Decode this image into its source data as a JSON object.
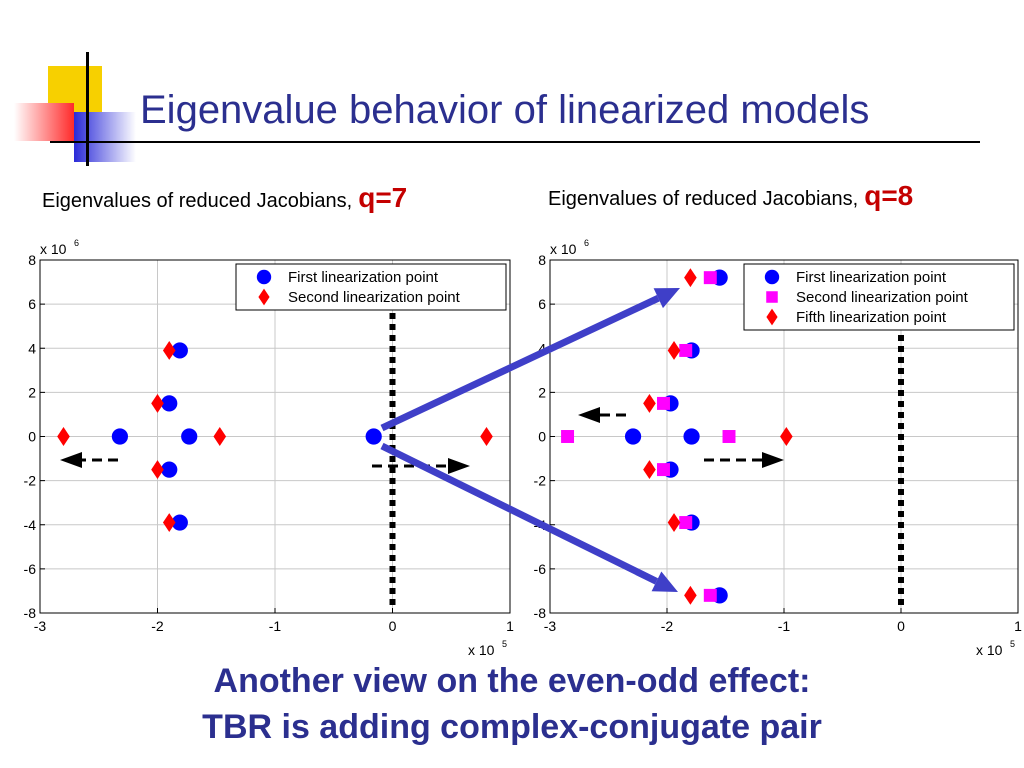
{
  "slide": {
    "title": "Eigenvalue behavior of linearized models",
    "bottom_line1": "Another view on the even-odd effect:",
    "bottom_line2": "TBR is adding complex-conjugate pair"
  },
  "colors": {
    "title": "#2b2f8f",
    "accent_red": "#c40000",
    "series_blue": "#0000ff",
    "series_red": "#ff0000",
    "series_magenta": "#ff00ff",
    "arrow": "#3f3fc8"
  },
  "chart_data": [
    {
      "type": "scatter",
      "subtitle": "Eigenvalues of reduced Jacobians,",
      "q_label": "q=7",
      "x_multiplier": "x 10",
      "x_multiplier_exp": "5",
      "y_multiplier": "x 10",
      "y_multiplier_exp": "6",
      "xlim": [
        -3,
        1
      ],
      "ylim": [
        -8,
        8
      ],
      "xticks": [
        "-3",
        "-2",
        "-1",
        "0",
        "1"
      ],
      "yticks": [
        "8",
        "6",
        "4",
        "2",
        "0",
        "-2",
        "-4",
        "-6",
        "-8"
      ],
      "grid": true,
      "legend_position": "top-right",
      "series": [
        {
          "name": "First linearization point",
          "marker": "circle",
          "color": "#0000ff",
          "points": [
            [
              -2.32,
              0
            ],
            [
              -1.73,
              0
            ],
            [
              -0.16,
              0
            ],
            [
              -1.81,
              3.9
            ],
            [
              -1.81,
              -3.9
            ],
            [
              -1.9,
              1.5
            ],
            [
              -1.9,
              -1.5
            ]
          ]
        },
        {
          "name": "Second linearization point",
          "marker": "diamond",
          "color": "#ff0000",
          "points": [
            [
              -2.8,
              0
            ],
            [
              -1.47,
              0
            ],
            [
              0.8,
              0
            ],
            [
              -1.9,
              3.9
            ],
            [
              -1.9,
              -3.9
            ],
            [
              -2.0,
              1.5
            ],
            [
              -2.0,
              -1.5
            ]
          ]
        }
      ]
    },
    {
      "type": "scatter",
      "subtitle": "Eigenvalues of reduced Jacobians,",
      "q_label": "q=8",
      "x_multiplier": "x 10",
      "x_multiplier_exp": "5",
      "y_multiplier": "x 10",
      "y_multiplier_exp": "6",
      "xlim": [
        -3,
        1
      ],
      "ylim": [
        -8,
        8
      ],
      "xticks": [
        "-3",
        "-2",
        "-1",
        "0",
        "1"
      ],
      "yticks": [
        "8",
        "6",
        "4",
        "2",
        "0",
        "-2",
        "-4",
        "-6",
        "-8"
      ],
      "grid": true,
      "legend_position": "top-right",
      "series": [
        {
          "name": "First linearization point",
          "marker": "circle",
          "color": "#0000ff",
          "points": [
            [
              -2.29,
              0
            ],
            [
              -1.79,
              0
            ],
            [
              -1.55,
              7.2
            ],
            [
              -1.55,
              -7.2
            ],
            [
              -1.79,
              3.9
            ],
            [
              -1.79,
              -3.9
            ],
            [
              -1.97,
              1.5
            ],
            [
              -1.97,
              -1.5
            ]
          ]
        },
        {
          "name": "Second linearization point",
          "marker": "square",
          "color": "#ff00ff",
          "points": [
            [
              -2.85,
              0
            ],
            [
              -1.47,
              0
            ],
            [
              -1.63,
              7.2
            ],
            [
              -1.63,
              -7.2
            ],
            [
              -1.84,
              3.9
            ],
            [
              -1.84,
              -3.9
            ],
            [
              -2.03,
              1.5
            ],
            [
              -2.03,
              -1.5
            ]
          ]
        },
        {
          "name": "Fifth linearization point",
          "marker": "diamond",
          "color": "#ff0000",
          "points": [
            [
              -0.98,
              0
            ],
            [
              -1.8,
              7.2
            ],
            [
              -1.8,
              -7.2
            ],
            [
              -1.94,
              3.9
            ],
            [
              -1.94,
              -3.9
            ],
            [
              -2.15,
              1.5
            ],
            [
              -2.15,
              -1.5
            ]
          ]
        }
      ]
    }
  ]
}
